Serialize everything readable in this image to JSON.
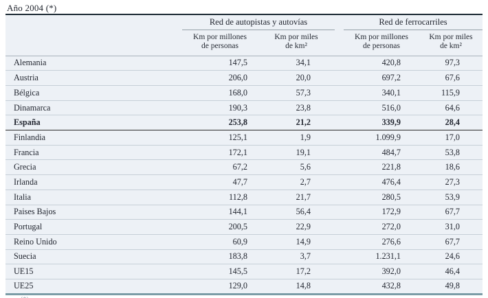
{
  "title": "Año 2004 (*)",
  "table": {
    "groups": [
      {
        "label": "Red de autopistas y autovías"
      },
      {
        "label": "Red de ferrocarriles"
      }
    ],
    "subheaders": {
      "per_million": "Km por millones\nde personas",
      "per_area": "Km por miles\nde km²"
    },
    "rows": [
      {
        "country": "Alemania",
        "values": [
          "147,5",
          "34,1",
          "420,8",
          "97,3"
        ]
      },
      {
        "country": "Austria",
        "values": [
          "206,0",
          "20,0",
          "697,2",
          "67,6"
        ]
      },
      {
        "country": "Bélgica",
        "values": [
          "168,0",
          "57,3",
          "340,1",
          "115,9"
        ]
      },
      {
        "country": "Dinamarca",
        "values": [
          "190,3",
          "23,8",
          "516,0",
          "64,6"
        ]
      },
      {
        "country": "España",
        "values": [
          "253,8",
          "21,2",
          "339,9",
          "28,4"
        ],
        "emphasis": true
      },
      {
        "country": "Finlandia",
        "values": [
          "125,1",
          "1,9",
          "1.099,9",
          "17,0"
        ]
      },
      {
        "country": "Francia",
        "values": [
          "172,1",
          "19,1",
          "484,7",
          "53,8"
        ]
      },
      {
        "country": "Grecia",
        "values": [
          "67,2",
          "5,6",
          "221,8",
          "18,6"
        ]
      },
      {
        "country": "Irlanda",
        "values": [
          "47,7",
          "2,7",
          "476,4",
          "27,3"
        ]
      },
      {
        "country": "Italia",
        "values": [
          "112,8",
          "21,7",
          "280,5",
          "53,9"
        ]
      },
      {
        "country": "Paises Bajos",
        "values": [
          "144,1",
          "56,4",
          "172,9",
          "67,7"
        ]
      },
      {
        "country": "Portugal",
        "values": [
          "200,5",
          "22,9",
          "272,0",
          "31,0"
        ]
      },
      {
        "country": "Reino Unido",
        "values": [
          "60,9",
          "14,9",
          "276,6",
          "67,7"
        ]
      },
      {
        "country": "Suecia",
        "values": [
          "183,8",
          "3,7",
          "1.231,1",
          "24,6"
        ]
      },
      {
        "country": "UE15",
        "values": [
          "145,5",
          "17,2",
          "392,0",
          "46,4"
        ],
        "total": true
      },
      {
        "country": "UE25",
        "values": [
          "129,0",
          "14,8",
          "432,8",
          "49,8"
        ],
        "total": true
      }
    ]
  },
  "footnote_fragment": "(*)",
  "colors": {
    "table_background": "#edf1f6",
    "top_rule": "#1b2933",
    "bottom_rule": "#7b9ca6",
    "row_separator": "#c6cfd7",
    "text": "#222630"
  }
}
